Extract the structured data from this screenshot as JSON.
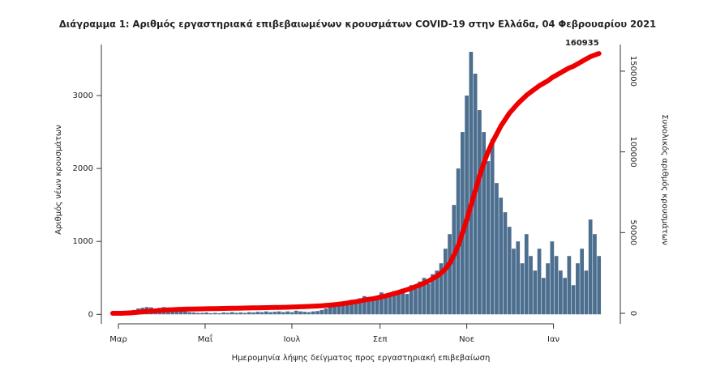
{
  "chart_data": {
    "type": "bar",
    "title": "Διάγραμμα 1: Αριθμός εργαστηριακά επιβεβαιωμένων κρουσμάτων COVID-19 στην Ελλάδα, 04 Φεβρουαρίου 2021",
    "xlabel": "Ημερομηνία λήψης δείγματος προς εργαστηριακή επιβεβαίωση",
    "ylabel": "Αριθμός νέων κρουσμάτων",
    "y2label": "Συνολικός αριθμός κρουσμάτων",
    "annotation": "160935",
    "x": [
      0,
      3,
      6,
      9,
      12,
      15,
      18,
      21,
      24,
      27,
      30,
      33,
      36,
      39,
      42,
      45,
      48,
      51,
      54,
      57,
      60,
      63,
      66,
      69,
      72,
      75,
      78,
      81,
      84,
      87,
      90,
      93,
      96,
      99,
      102,
      105,
      108,
      111,
      114,
      117,
      120,
      123,
      126,
      129,
      132,
      135,
      138,
      141,
      144,
      147,
      150,
      153,
      156,
      159,
      162,
      165,
      168,
      171,
      174,
      177,
      180,
      183,
      186,
      189,
      192,
      195,
      198,
      201,
      204,
      207,
      210,
      213,
      216,
      219,
      222,
      225,
      228,
      231,
      234,
      237,
      240,
      243,
      246,
      249,
      252,
      255,
      258,
      261,
      264,
      267,
      270,
      273,
      276,
      279,
      282,
      285,
      288,
      291,
      294,
      297,
      300,
      303,
      306,
      309,
      312,
      315,
      318,
      321,
      324,
      327,
      330,
      333,
      336,
      339,
      342
    ],
    "xlim": [
      -8,
      357
    ],
    "xticks": [
      {
        "value": 4,
        "label": "Μαρ"
      },
      {
        "value": 65,
        "label": "Μαΐ"
      },
      {
        "value": 126,
        "label": "Ιουλ"
      },
      {
        "value": 188,
        "label": "Σεπ"
      },
      {
        "value": 249,
        "label": "Νοε"
      },
      {
        "value": 310,
        "label": "Ιαν"
      }
    ],
    "ylim": [
      -130,
      3700
    ],
    "yticks": [
      0,
      1000,
      2000,
      3000
    ],
    "y2lim": [
      -6500,
      166500
    ],
    "y2ticks": [
      0,
      50000,
      100000,
      150000
    ],
    "series": [
      {
        "type": "bar",
        "color": "#4d6f8f",
        "values": [
          2,
          5,
          10,
          20,
          40,
          60,
          80,
          90,
          100,
          95,
          80,
          90,
          100,
          80,
          70,
          60,
          50,
          40,
          30,
          25,
          20,
          20,
          25,
          15,
          20,
          15,
          25,
          20,
          30,
          20,
          25,
          20,
          30,
          25,
          35,
          30,
          40,
          30,
          35,
          40,
          30,
          40,
          30,
          50,
          40,
          35,
          30,
          40,
          45,
          60,
          80,
          100,
          120,
          130,
          150,
          170,
          200,
          190,
          220,
          250,
          200,
          220,
          250,
          300,
          280,
          250,
          320,
          300,
          350,
          280,
          400,
          350,
          450,
          500,
          420,
          550,
          600,
          700,
          900,
          1100,
          1500,
          2000,
          2500,
          3000,
          3600,
          3300,
          2800,
          2500,
          2100,
          2400,
          1800,
          1600,
          1400,
          1200,
          900,
          1000,
          700,
          1100,
          800,
          600,
          900,
          500,
          700,
          1000,
          800,
          600,
          500,
          800,
          400,
          700,
          900,
          600,
          1300,
          1100,
          800
        ]
      },
      {
        "type": "line",
        "axis": "y2",
        "color": "#ee0000",
        "values": [
          0,
          10,
          40,
          100,
          250,
          450,
          700,
          950,
          1200,
          1350,
          1500,
          1700,
          1900,
          2100,
          2250,
          2400,
          2500,
          2600,
          2650,
          2700,
          2750,
          2800,
          2850,
          2900,
          2950,
          3000,
          3050,
          3100,
          3150,
          3200,
          3250,
          3300,
          3350,
          3400,
          3450,
          3500,
          3550,
          3600,
          3650,
          3700,
          3750,
          3800,
          3900,
          4000,
          4100,
          4200,
          4300,
          4400,
          4550,
          4700,
          4900,
          5100,
          5400,
          5700,
          6000,
          6400,
          6800,
          7200,
          7700,
          8200,
          8700,
          9000,
          9600,
          10200,
          10800,
          11500,
          12200,
          13000,
          13800,
          14600,
          15500,
          16500,
          17500,
          18700,
          20000,
          21500,
          23000,
          25000,
          27500,
          31000,
          36000,
          42000,
          50000,
          58000,
          67000,
          76000,
          85000,
          93000,
          100000,
          106000,
          111000,
          116000,
          120000,
          124000,
          127000,
          130000,
          132500,
          135000,
          137000,
          139000,
          141000,
          142500,
          144000,
          146000,
          147500,
          149000,
          150500,
          152000,
          153000,
          154500,
          156000,
          157500,
          159000,
          160000,
          160935
        ]
      }
    ]
  }
}
